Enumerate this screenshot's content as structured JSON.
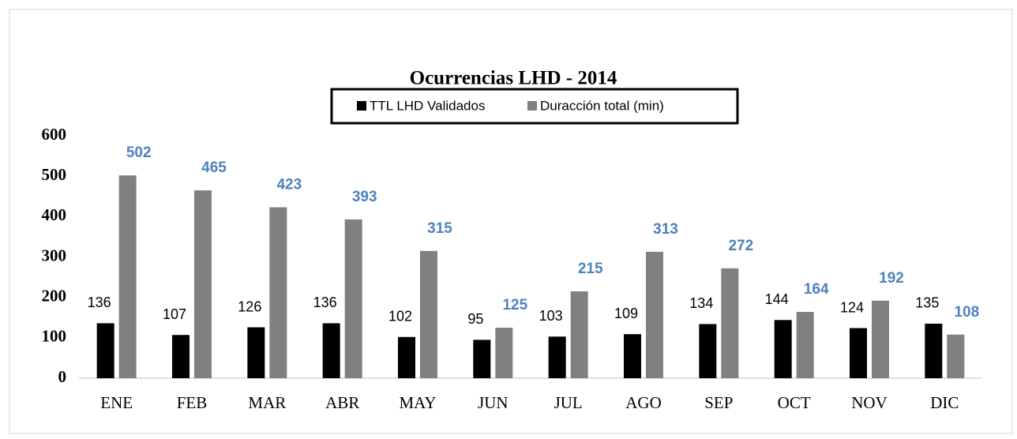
{
  "chart_data": {
    "type": "bar",
    "title": "Ocurrencias LHD - 2014",
    "categories": [
      "ENE",
      "FEB",
      "MAR",
      "ABR",
      "MAY",
      "JUN",
      "JUL",
      "AGO",
      "SEP",
      "OCT",
      "NOV",
      "DIC"
    ],
    "series": [
      {
        "name": "TTL LHD Validados",
        "color": "#000000",
        "values": [
          136,
          107,
          126,
          136,
          102,
          95,
          103,
          109,
          134,
          144,
          124,
          135
        ]
      },
      {
        "name": "Duracción total (min)",
        "color": "#808080",
        "values": [
          502,
          465,
          423,
          393,
          315,
          125,
          215,
          313,
          272,
          164,
          192,
          108
        ]
      }
    ],
    "ylim": [
      0,
      600
    ],
    "yticks": [
      0,
      100,
      200,
      300,
      400,
      500,
      600
    ],
    "grid": false,
    "legend": "top"
  }
}
